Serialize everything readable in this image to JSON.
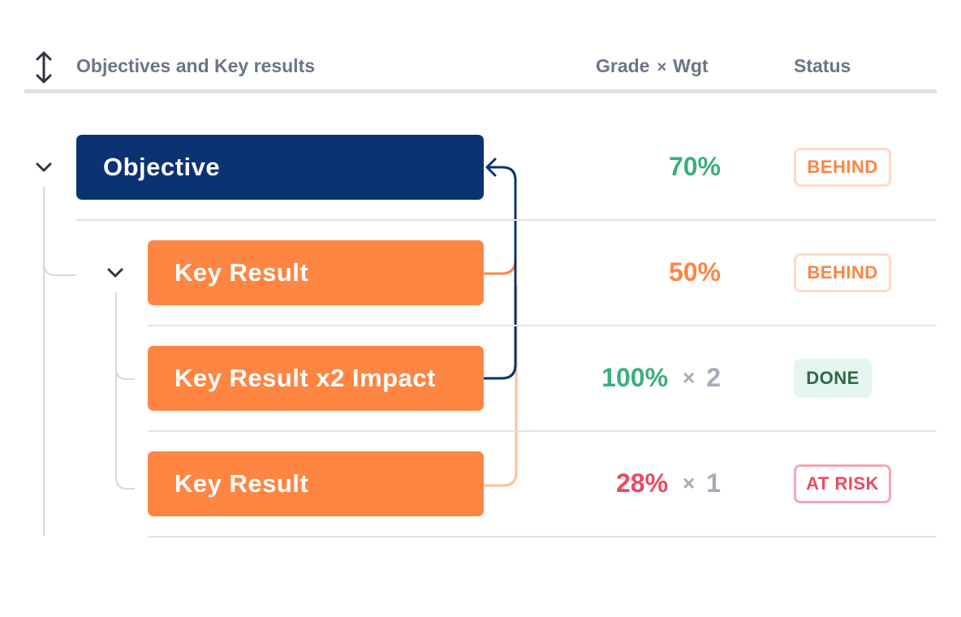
{
  "colors": {
    "objective": "#0b3272",
    "key_result": "#fe8542",
    "connector_light": "#f9c19d",
    "grade_good": "#3caf7a",
    "grade_mid": "#fe8542",
    "grade_low": "#ec4960",
    "weight": "#a5abb8",
    "behind": "#fe8542",
    "done": "#2d6a46",
    "at_risk": "#ec4960"
  },
  "header": {
    "sort_icon": "up-down-arrow-icon",
    "title": "Objectives and Key results",
    "grade_label": "Grade",
    "times_symbol": "×",
    "weight_label": "Wgt",
    "status_label": "Status"
  },
  "rows": [
    {
      "label": "Objective",
      "grade": "70%",
      "times": "",
      "weight": "",
      "status": "BEHIND"
    },
    {
      "label": "Key Result",
      "grade": "50%",
      "times": "",
      "weight": "",
      "status": "BEHIND"
    },
    {
      "label": "Key Result x2 Impact",
      "grade": "100%",
      "times": "×",
      "weight": "2",
      "status": "DONE"
    },
    {
      "label": "Key Result",
      "grade": "28%",
      "times": "×",
      "weight": "1",
      "status": "AT RISK"
    }
  ]
}
